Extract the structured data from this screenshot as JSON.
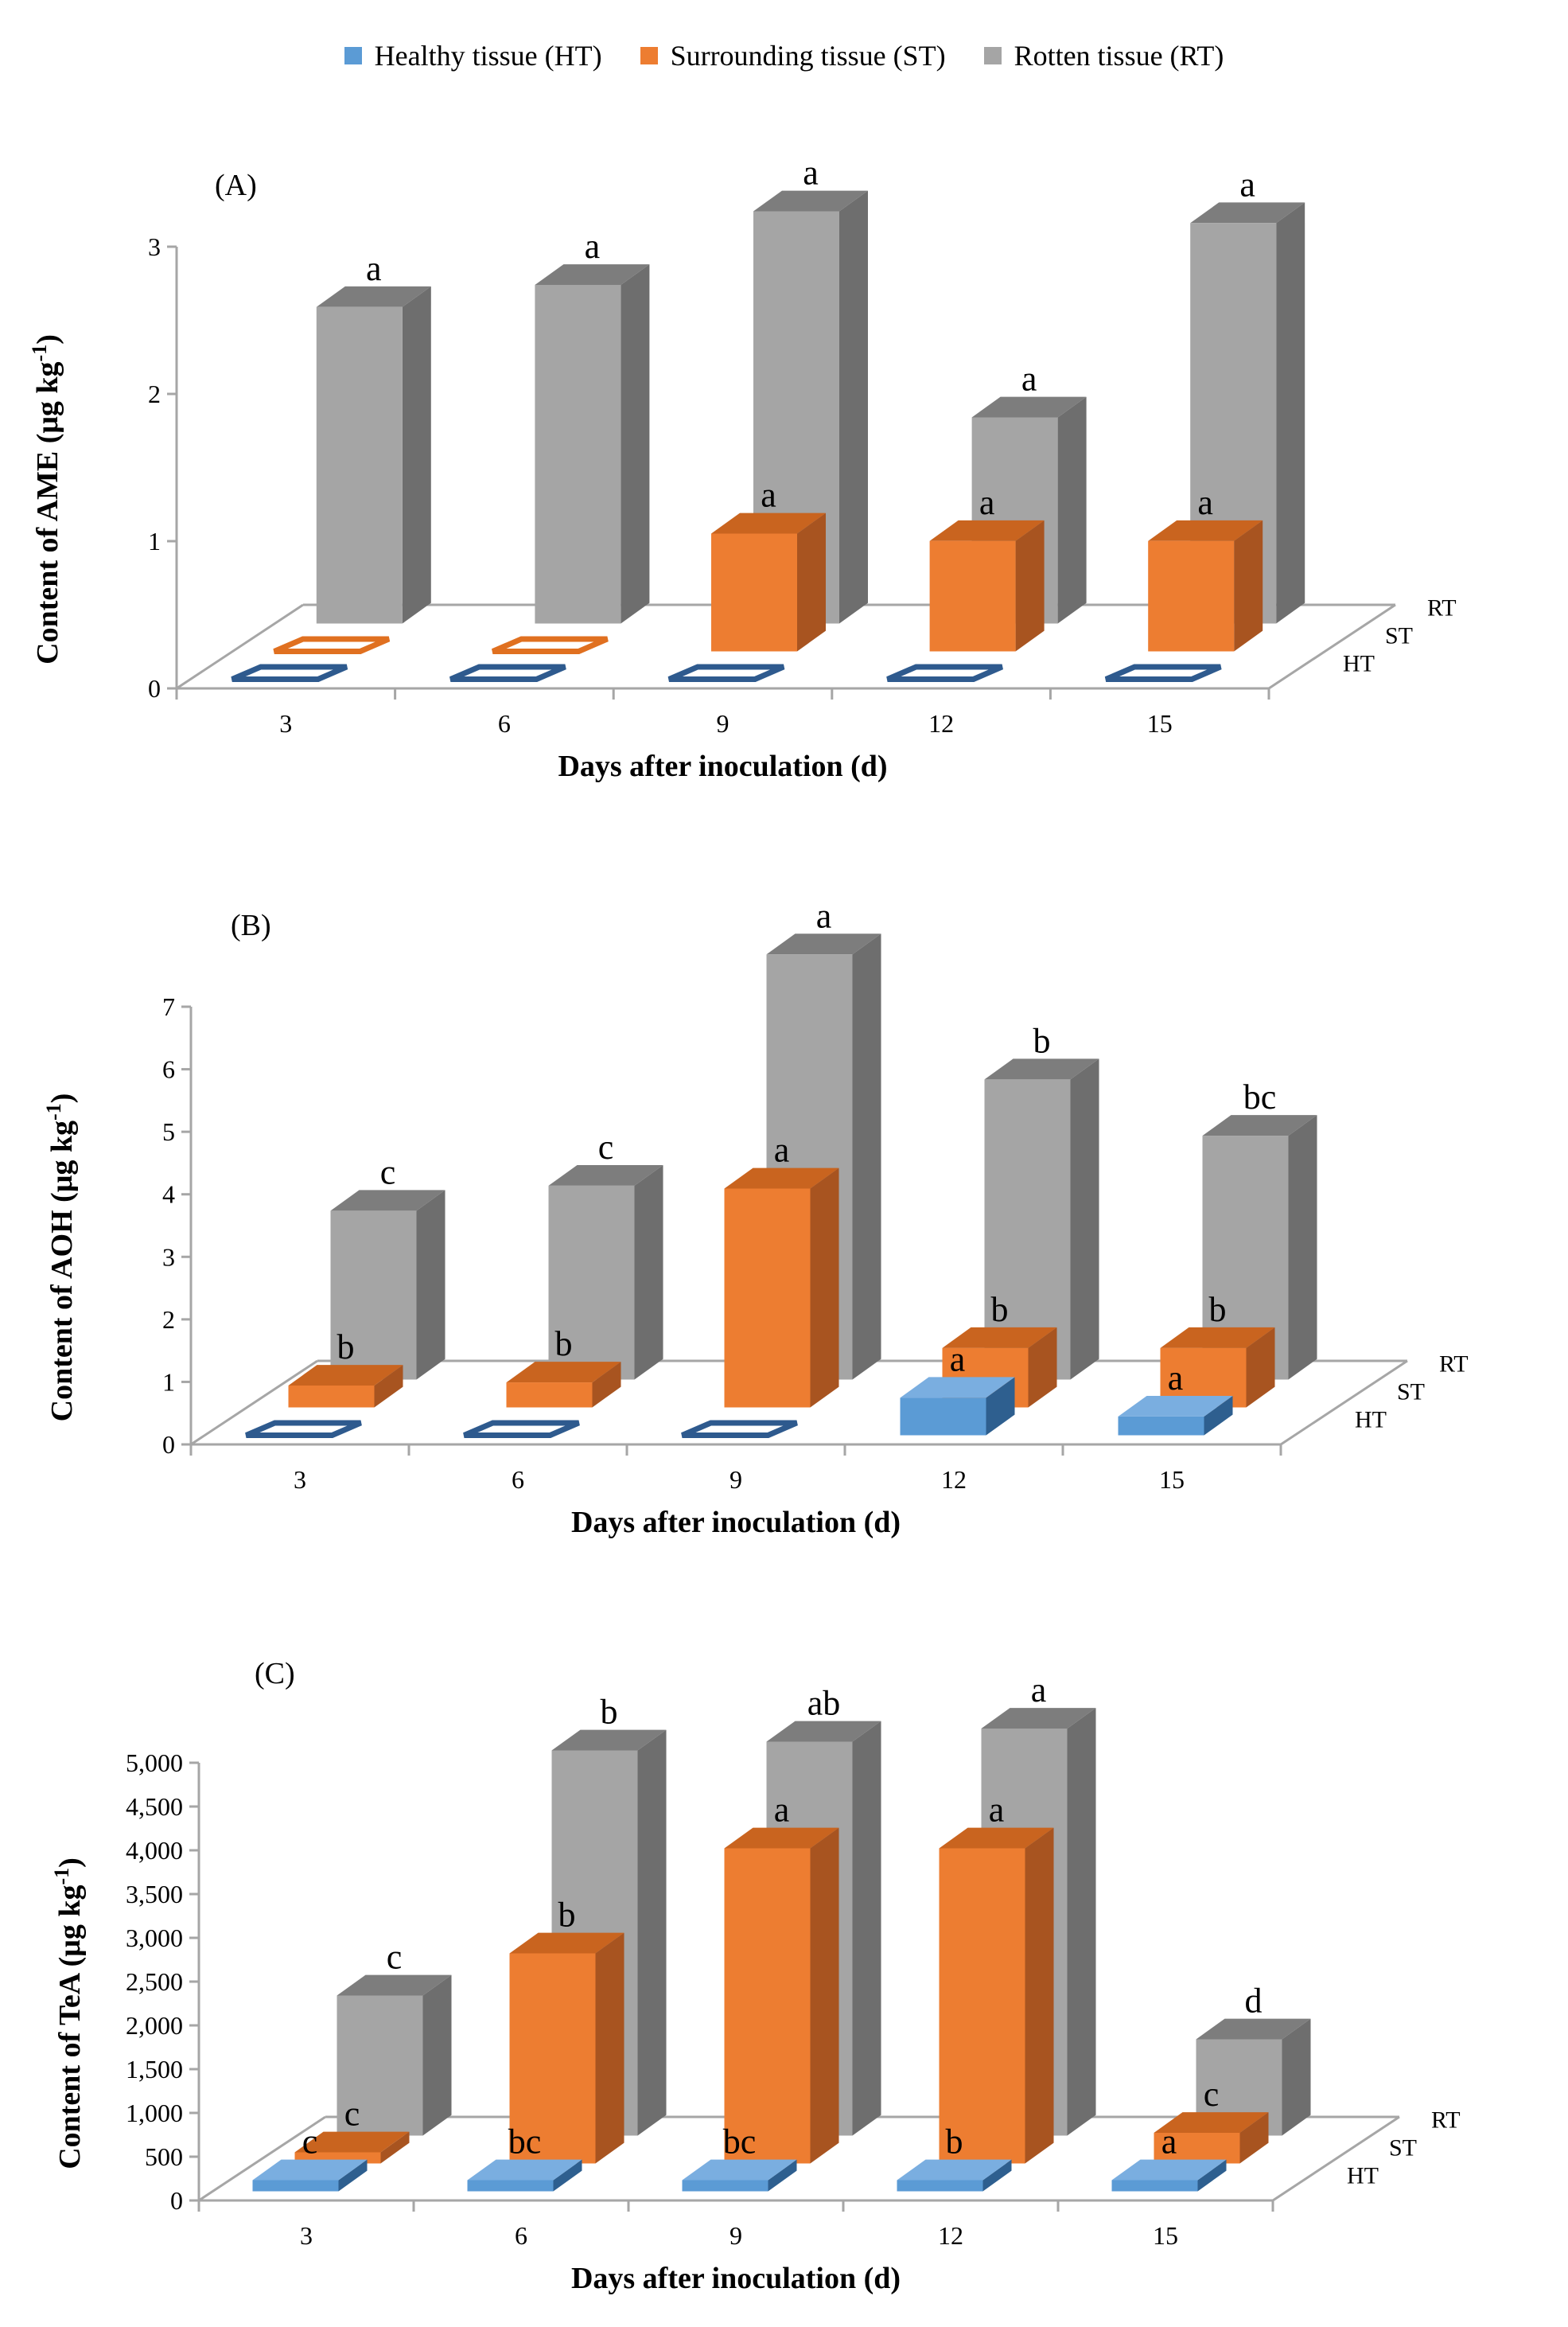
{
  "legend": [
    {
      "label": "Healthy tissue (HT)",
      "color": "#5b9bd5"
    },
    {
      "label": "Surrounding tissue (ST)",
      "color": "#ed7d31"
    },
    {
      "label": "Rotten tissue (RT)",
      "color": "#a5a5a5"
    }
  ],
  "colors": {
    "HT": {
      "front": "#5b9bd5",
      "side": "#2e5f8f",
      "top": "#7aaee0",
      "outline": "#2e5a8e"
    },
    "ST": {
      "front": "#ed7d31",
      "side": "#a85420",
      "top": "#c9641f",
      "outline": "#e07020"
    },
    "RT": {
      "front": "#a5a5a5",
      "side": "#6e6e6e",
      "top": "#7d7d7d",
      "outline": "#808080"
    },
    "axis": "#a6a6a6"
  },
  "chart_data": [
    {
      "id": "A",
      "type": "bar",
      "title": "(A)",
      "xlabel": "Days after inoculation (d)",
      "ylabel": "Content of AME (μg kg",
      "ylabel_sup": "-1",
      "ylabel_end": ")",
      "categories": [
        "3",
        "6",
        "9",
        "12",
        "15"
      ],
      "yticks": [
        "0",
        "1",
        "2",
        "3"
      ],
      "ylim": [
        0,
        3
      ],
      "row_labels": [
        "HT",
        "ST",
        "RT"
      ],
      "series": [
        {
          "name": "HT",
          "values": [
            0,
            0,
            0,
            0,
            0
          ],
          "letters": [
            "",
            "",
            "",
            "",
            ""
          ]
        },
        {
          "name": "ST",
          "values": [
            0,
            0,
            0.8,
            0.75,
            0.75
          ],
          "letters": [
            "",
            "",
            "a",
            "a",
            "a"
          ]
        },
        {
          "name": "RT",
          "values": [
            2.15,
            2.3,
            2.8,
            1.4,
            2.72
          ],
          "letters": [
            "a",
            "a",
            "a",
            "a",
            "a"
          ]
        }
      ]
    },
    {
      "id": "B",
      "type": "bar",
      "title": "(B)",
      "xlabel": "Days after inoculation (d)",
      "ylabel": "Content of AOH (μg kg",
      "ylabel_sup": "-1",
      "ylabel_end": ")",
      "categories": [
        "3",
        "6",
        "9",
        "12",
        "15"
      ],
      "yticks": [
        "0",
        "1",
        "2",
        "3",
        "4",
        "5",
        "6",
        "7"
      ],
      "ylim": [
        0,
        7
      ],
      "row_labels": [
        "HT",
        "ST",
        "RT"
      ],
      "series": [
        {
          "name": "HT",
          "values": [
            0,
            0,
            0,
            0.6,
            0.3
          ],
          "letters": [
            "",
            "",
            "",
            "a",
            "a"
          ]
        },
        {
          "name": "ST",
          "values": [
            0.35,
            0.4,
            3.5,
            0.95,
            0.95
          ],
          "letters": [
            "b",
            "b",
            "a",
            "b",
            "b"
          ]
        },
        {
          "name": "RT",
          "values": [
            2.7,
            3.1,
            6.8,
            4.8,
            3.9
          ],
          "letters": [
            "c",
            "c",
            "a",
            "b",
            "bc"
          ]
        }
      ]
    },
    {
      "id": "C",
      "type": "bar",
      "title": "(C)",
      "xlabel": "Days after inoculation (d)",
      "ylabel": "Content of TeA (μg kg",
      "ylabel_sup": "-1",
      "ylabel_end": ")",
      "categories": [
        "3",
        "6",
        "9",
        "12",
        "15"
      ],
      "yticks": [
        "0",
        "500",
        "1,000",
        "1,500",
        "2,000",
        "2,500",
        "3,000",
        "3,500",
        "4,000",
        "4,500",
        "5,000"
      ],
      "ylim": [
        0,
        5000
      ],
      "row_labels": [
        "HT",
        "ST",
        "RT"
      ],
      "series": [
        {
          "name": "HT",
          "values": [
            15,
            15,
            15,
            15,
            25
          ],
          "letters": [
            "c",
            "bc",
            "bc",
            "b",
            "a"
          ]
        },
        {
          "name": "ST",
          "values": [
            100,
            2400,
            3600,
            3600,
            350
          ],
          "letters": [
            "c",
            "b",
            "a",
            "a",
            "c"
          ]
        },
        {
          "name": "RT",
          "values": [
            1600,
            4400,
            4500,
            4650,
            1100
          ],
          "letters": [
            "c",
            "b",
            "ab",
            "a",
            "d"
          ]
        }
      ]
    }
  ]
}
